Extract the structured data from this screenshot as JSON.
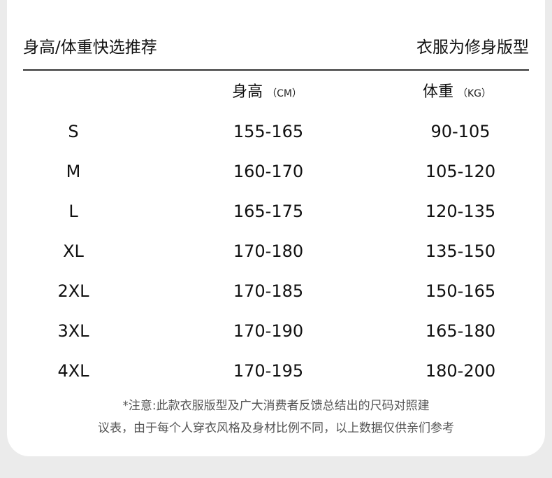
{
  "header": {
    "title_left": "身高/体重快选推荐",
    "title_right": "衣服为修身版型"
  },
  "table": {
    "columns": [
      {
        "label": "",
        "unit": ""
      },
      {
        "label": "身高",
        "unit": "（CM）"
      },
      {
        "label": "体重",
        "unit": "（KG）"
      }
    ],
    "rows": [
      [
        "S",
        "155-165",
        "90-105"
      ],
      [
        "M",
        "160-170",
        "105-120"
      ],
      [
        "L",
        "165-175",
        "120-135"
      ],
      [
        "XL",
        "170-180",
        "135-150"
      ],
      [
        "2XL",
        "170-185",
        "150-165"
      ],
      [
        "3XL",
        "170-190",
        "165-180"
      ],
      [
        "4XL",
        "170-195",
        "180-200"
      ]
    ]
  },
  "note": {
    "line1": "*注意:此款衣服版型及广大消费者反馈总结出的尺码对照建",
    "line2": "议表，由于每个人穿衣风格及身材比例不同，以上数据仅供亲们参考"
  }
}
